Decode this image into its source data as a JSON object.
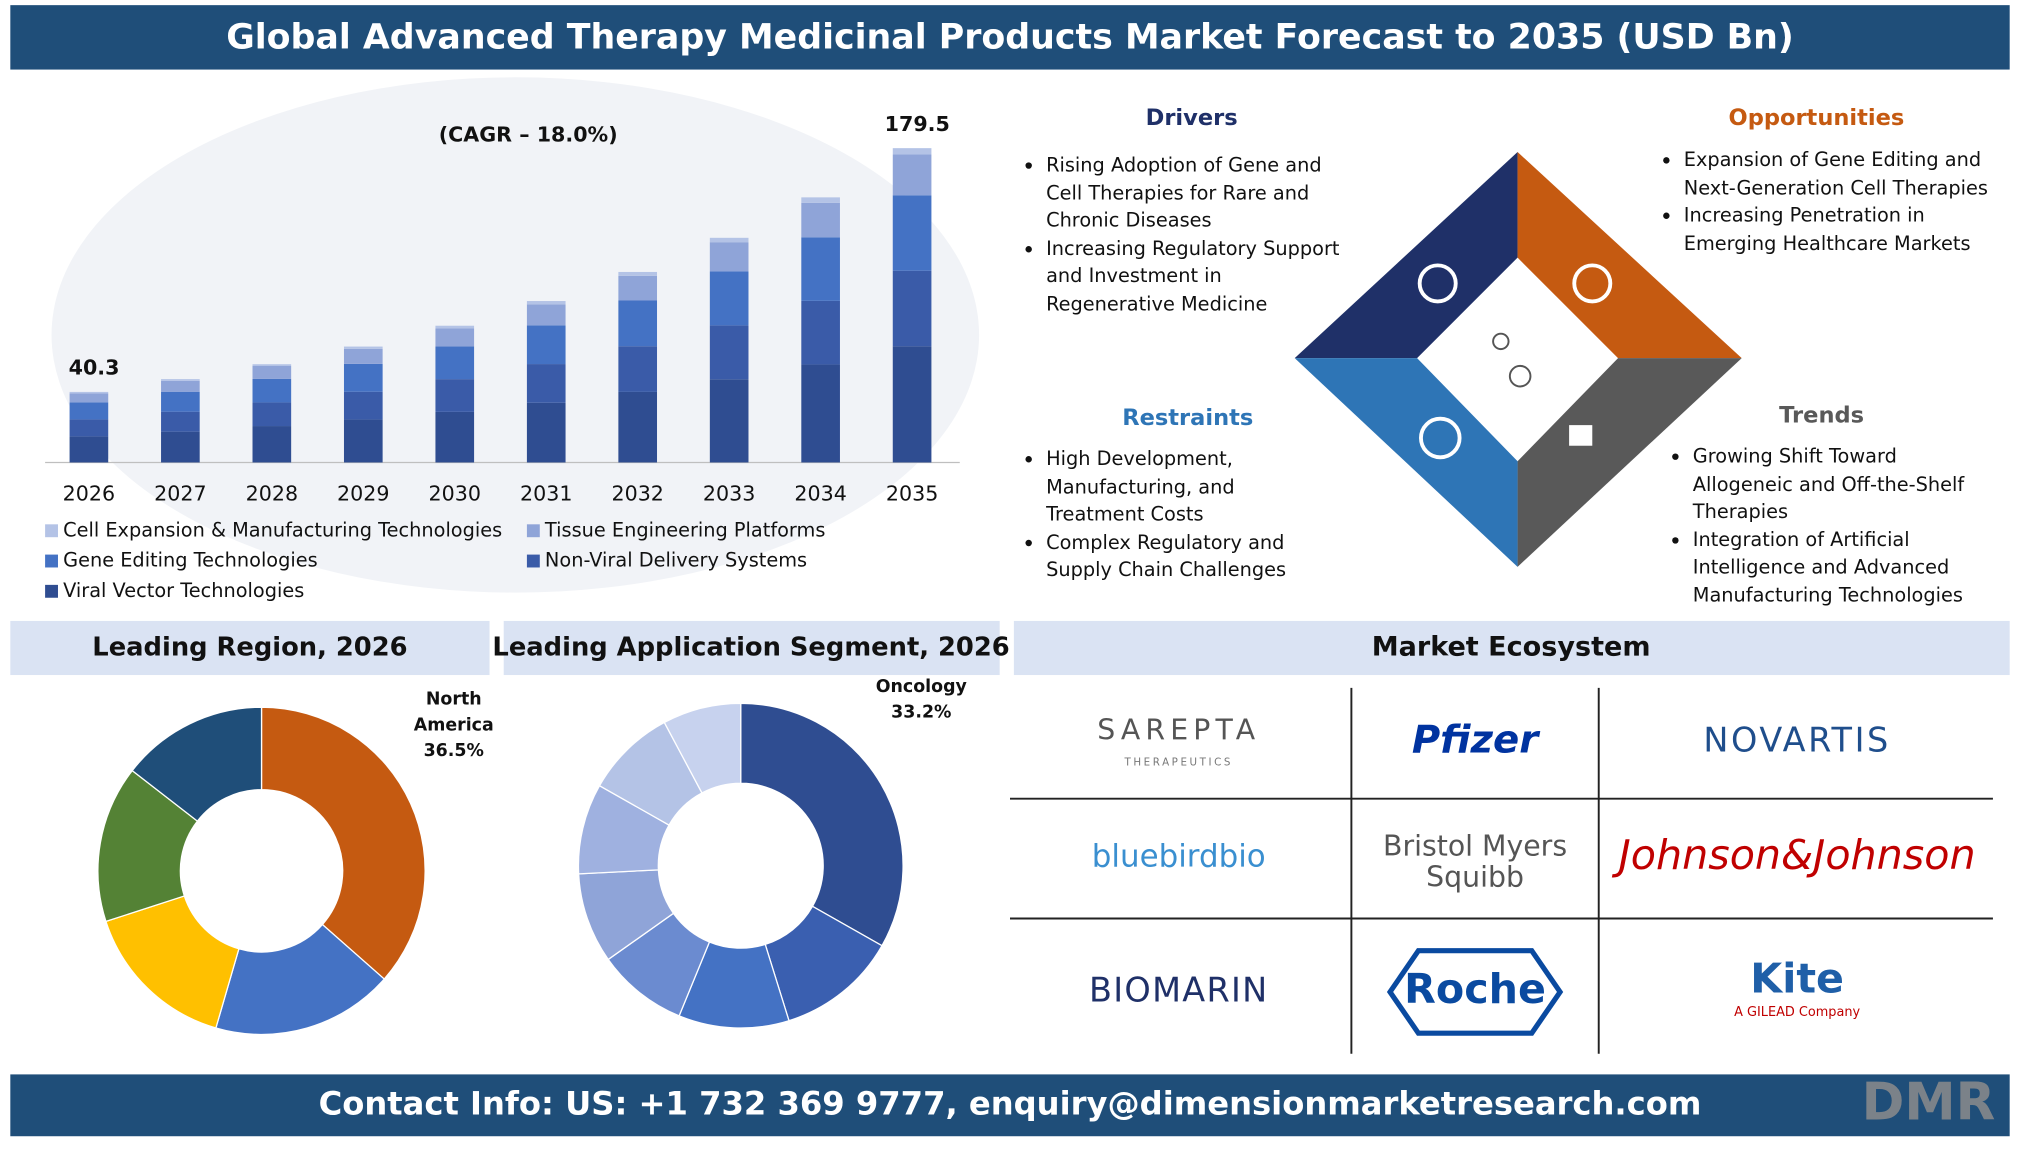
{
  "header": {
    "title": "Global Advanced Therapy Medicinal Products Market Forecast to 2035 (USD Bn)"
  },
  "chart_data": [
    {
      "type": "bar",
      "stacked": true,
      "subtitle": "(CAGR – 18.0%)",
      "categories": [
        "2026",
        "2027",
        "2028",
        "2029",
        "2030",
        "2031",
        "2032",
        "2033",
        "2034",
        "2035"
      ],
      "series": [
        {
          "name": "Cell Expansion & Manufacturing Technologies",
          "color": "#b4c3e6",
          "values": [
            0.8,
            1.0,
            1.0,
            1.3,
            1.6,
            1.9,
            2.2,
            2.5,
            3.1,
            3.6
          ]
        },
        {
          "name": "Tissue Engineering Platforms",
          "color": "#8fa4d8",
          "values": [
            5.2,
            6.2,
            7.3,
            8.6,
            10.2,
            12.0,
            14.1,
            16.7,
            19.7,
            23.3
          ]
        },
        {
          "name": "Gene Editing Technologies",
          "color": "#4472c4",
          "values": [
            9.7,
            11.4,
            13.5,
            15.9,
            18.7,
            22.1,
            26.1,
            30.8,
            36.3,
            43.1
          ]
        },
        {
          "name": "Non-Viral Delivery Systems",
          "color": "#3a5ba8",
          "values": [
            9.7,
            11.4,
            13.5,
            15.9,
            18.7,
            22.1,
            26.1,
            30.8,
            36.3,
            43.1
          ]
        },
        {
          "name": "Viral Vector Technologies",
          "color": "#2f4d91",
          "values": [
            14.9,
            17.6,
            20.8,
            24.5,
            28.9,
            34.1,
            40.3,
            47.5,
            56.0,
            66.4
          ]
        }
      ],
      "totals": [
        40.3,
        null,
        null,
        null,
        null,
        null,
        null,
        null,
        null,
        179.5
      ]
    },
    {
      "type": "pie",
      "donut": true,
      "title": "Leading Region, 2026",
      "categories": [
        "North America",
        null,
        null,
        null,
        null
      ],
      "values": [
        36.5,
        18,
        15.5,
        15.5,
        14.5
      ],
      "value_labels": [
        "36.5%",
        null,
        null,
        null,
        null
      ],
      "colors": [
        "#c55a11",
        "#4472c4",
        "#ffc000",
        "#548235",
        "#1f4e79"
      ]
    },
    {
      "type": "pie",
      "donut": true,
      "title": "Leading Application Segment, 2026",
      "categories": [
        "Oncology",
        null,
        null,
        null,
        null,
        null,
        null,
        null
      ],
      "values": [
        33.2,
        12,
        11,
        9,
        9,
        9,
        9,
        7.8
      ],
      "value_labels": [
        "33.2%",
        null,
        null,
        null,
        null,
        null,
        null,
        null
      ],
      "colors": [
        "#2f4d91",
        "#3a5fb0",
        "#4472c4",
        "#6b8bd0",
        "#8fa4d8",
        "#9fb1e0",
        "#b4c3e6",
        "#c7d2ee"
      ]
    }
  ],
  "drivers": {
    "title": "Drivers",
    "items": [
      "Rising Adoption of Gene and Cell Therapies for Rare and Chronic Diseases",
      "Increasing Regulatory Support and Investment in Regenerative Medicine"
    ]
  },
  "opportunities": {
    "title": "Opportunities",
    "items": [
      "Expansion of Gene Editing and Next-Generation Cell Therapies",
      "Increasing Penetration in Emerging Healthcare Markets"
    ]
  },
  "restraints": {
    "title": "Restraints",
    "items": [
      "High Development, Manufacturing, and Treatment Costs",
      "Complex Regulatory and Supply Chain Challenges"
    ]
  },
  "trends": {
    "title": "Trends",
    "items": [
      "Growing Shift Toward Allogeneic and Off-the-Shelf Therapies",
      "Integration of Artificial Intelligence and Advanced Manufacturing Technologies"
    ]
  },
  "ecosystem": {
    "title": "Market Ecosystem",
    "companies": [
      {
        "lines": [
          "SAREPTA",
          "THERAPEUTICS"
        ]
      },
      {
        "lines": [
          "Pfizer"
        ]
      },
      {
        "lines": [
          "NOVARTIS"
        ]
      },
      {
        "lines": [
          "bluebirdbio"
        ]
      },
      {
        "lines": [
          "Bristol Myers",
          "Squibb"
        ]
      },
      {
        "lines": [
          "Johnson&Johnson"
        ]
      },
      {
        "lines": [
          "BIOMARIN"
        ]
      },
      {
        "lines": [
          "Roche"
        ]
      },
      {
        "lines": [
          "Kite",
          "A GILEAD Company"
        ]
      }
    ]
  },
  "footer": {
    "contact": "Contact Info: US: +1 732 369 9777, enquiry@dimensionmarketresearch.com",
    "logo": "DMR"
  }
}
